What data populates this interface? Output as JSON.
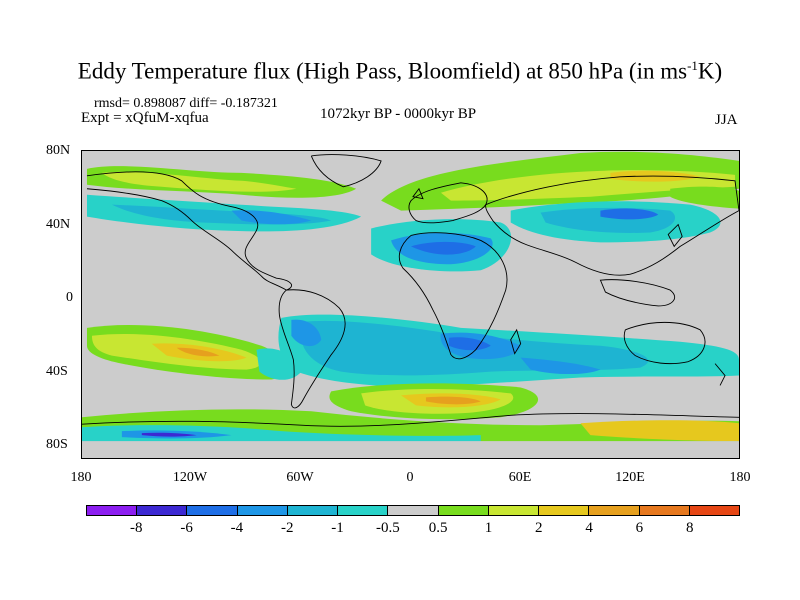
{
  "title": {
    "main": "Eddy Temperature flux (High Pass, Bloomfield) at 850 hPa (in ms",
    "superscript": "-1",
    "suffix": "K)"
  },
  "stats": "rmsd= 0.898087 diff= -0.187321",
  "expt": "Expt = xQfuM-xqfua",
  "period": "1072kyr BP - 0000kyr BP",
  "season": "JJA",
  "lat_labels": [
    "80N",
    "40N",
    "0",
    "40S",
    "80S"
  ],
  "lon_labels": [
    "180",
    "120W",
    "60W",
    "0",
    "60E",
    "120E",
    "180"
  ],
  "colorbar": {
    "colors": [
      "#8c1ef0",
      "#3c28d2",
      "#1e6ee6",
      "#1e96e6",
      "#1eb4d2",
      "#28d2c8",
      "#cccccc",
      "#78dc1e",
      "#c8e632",
      "#e6c81e",
      "#e6a01e",
      "#e6781e",
      "#e64614"
    ],
    "labels": [
      "-8",
      "-6",
      "-4",
      "-2",
      "-1",
      "-0.5",
      "0.5",
      "1",
      "2",
      "4",
      "6",
      "8"
    ]
  },
  "map_colors": {
    "background": "#cccccc",
    "cyan": "#28d2c8",
    "light_blue": "#1eb4d2",
    "blue": "#1e96e6",
    "dark_blue": "#1e6ee6",
    "green": "#78dc1e",
    "yellow": "#c8e632",
    "orange": "#e6c81e",
    "dark_orange": "#e6a01e",
    "navy": "#3c28d2",
    "purple": "#8c1ef0"
  }
}
